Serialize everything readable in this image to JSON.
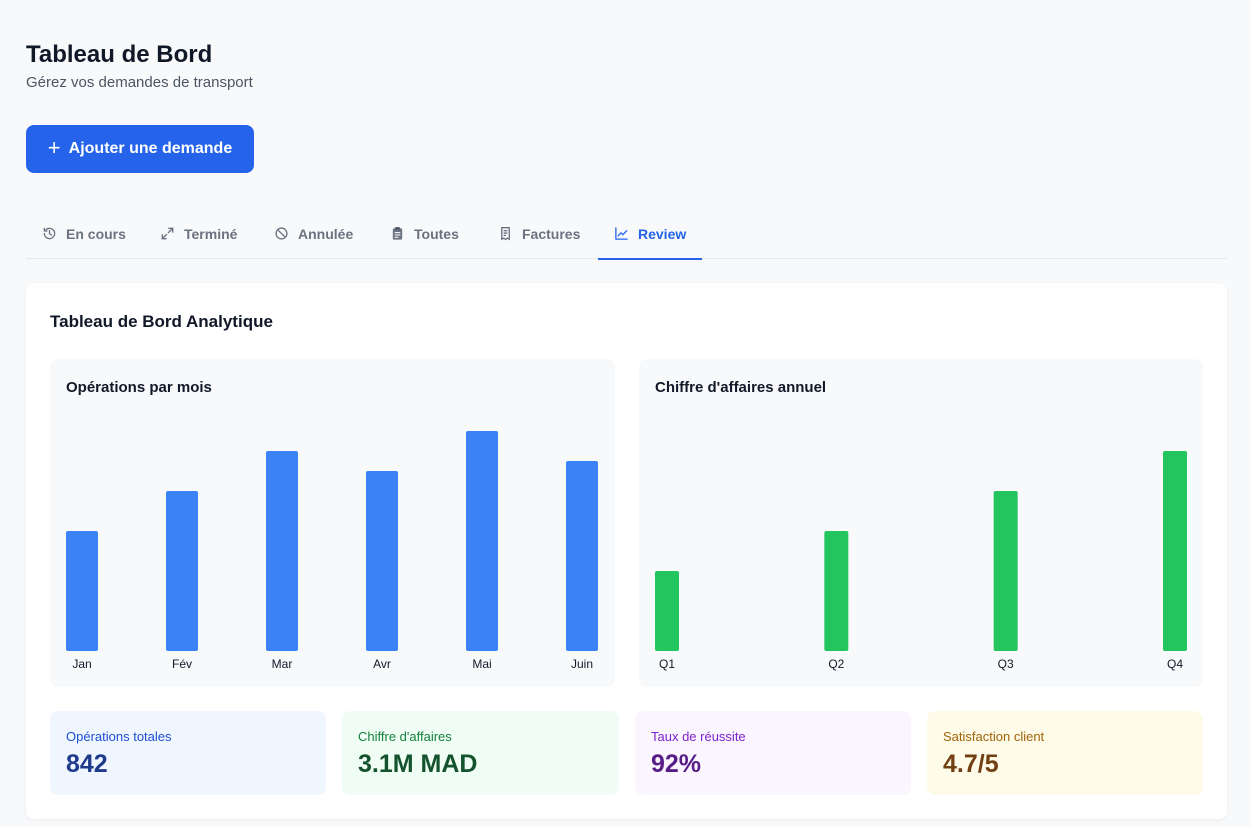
{
  "header": {
    "title": "Tableau de Bord",
    "subtitle": "Gérez vos demandes de transport"
  },
  "actions": {
    "add_label": "Ajouter une demande"
  },
  "tabs": [
    {
      "label": "En cours",
      "icon": "history-icon"
    },
    {
      "label": "Terminé",
      "icon": "expand-arrows-icon"
    },
    {
      "label": "Annulée",
      "icon": "ban-icon"
    },
    {
      "label": "Toutes",
      "icon": "clipboard-icon"
    },
    {
      "label": "Factures",
      "icon": "receipt-icon"
    },
    {
      "label": "Review",
      "icon": "line-chart-icon",
      "active": true
    }
  ],
  "analytics": {
    "title": "Tableau de Bord Analytique"
  },
  "chart_data": [
    {
      "type": "bar",
      "title": "Opérations par mois",
      "categories": [
        "Jan",
        "Fév",
        "Mar",
        "Avr",
        "Mai",
        "Juin"
      ],
      "values": [
        60,
        80,
        100,
        90,
        110,
        95
      ],
      "ylim": [
        0,
        110
      ],
      "color": "#3b82f6",
      "xlabel": "",
      "ylabel": ""
    },
    {
      "type": "bar",
      "title": "Chiffre d'affaires annuel",
      "categories": [
        "Q1",
        "Q2",
        "Q3",
        "Q4"
      ],
      "values": [
        40,
        60,
        80,
        100
      ],
      "ylim": [
        0,
        110
      ],
      "color": "#22c55e",
      "xlabel": "",
      "ylabel": ""
    }
  ],
  "stats": [
    {
      "label": "Opérations totales",
      "value": "842",
      "bg": "#eff6ff",
      "label_color": "#1d4ed8",
      "value_color": "#1e3a8a"
    },
    {
      "label": "Chiffre d'affaires",
      "value": "3.1M MAD",
      "bg": "#f0fdf4",
      "label_color": "#15803d",
      "value_color": "#14532d"
    },
    {
      "label": "Taux de réussite",
      "value": "92%",
      "bg": "#faf5ff",
      "label_color": "#7e22ce",
      "value_color": "#581c87"
    },
    {
      "label": "Satisfaction client",
      "value": "4.7/5",
      "bg": "#fefce8",
      "label_color": "#a16207",
      "value_color": "#713f12"
    }
  ]
}
